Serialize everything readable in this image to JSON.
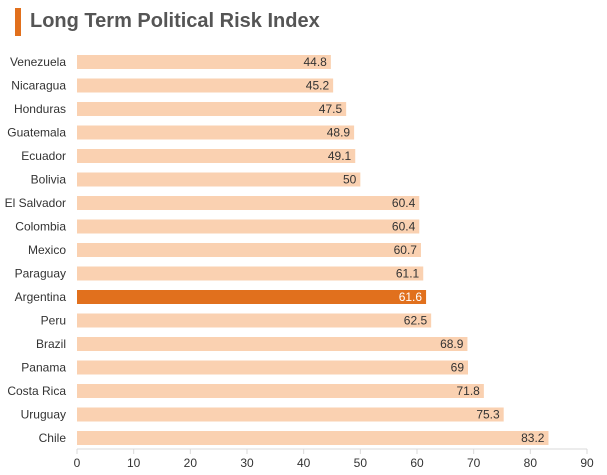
{
  "title": "Long Term Political Risk Index",
  "colors": {
    "accent": "#e1701d",
    "bar": "#fad1b1",
    "highlight": "#e1701d",
    "axis": "#d9d9d9"
  },
  "chart_data": {
    "type": "bar",
    "orientation": "horizontal",
    "title": "Long Term Political Risk Index",
    "categories": [
      "Venezuela",
      "Nicaragua",
      "Honduras",
      "Guatemala",
      "Ecuador",
      "Bolivia",
      "El Salvador",
      "Colombia",
      "Mexico",
      "Paraguay",
      "Argentina",
      "Peru",
      "Brazil",
      "Panama",
      "Costa Rica",
      "Uruguay",
      "Chile"
    ],
    "values": [
      44.8,
      45.2,
      47.5,
      48.9,
      49.1,
      50,
      60.4,
      60.4,
      60.7,
      61.1,
      61.6,
      62.5,
      68.9,
      69,
      71.8,
      75.3,
      83.2
    ],
    "value_labels": [
      "44.8",
      "45.2",
      "47.5",
      "48.9",
      "49.1",
      "50",
      "60.4",
      "60.4",
      "60.7",
      "61.1",
      "61.6",
      "62.5",
      "68.9",
      "69",
      "71.8",
      "75.3",
      "83.2"
    ],
    "highlight": "Argentina",
    "xlim": [
      0,
      90
    ],
    "xticks": [
      0,
      10,
      20,
      30,
      40,
      50,
      60,
      70,
      80,
      90
    ],
    "xlabel": "",
    "ylabel": "",
    "grid": false
  }
}
